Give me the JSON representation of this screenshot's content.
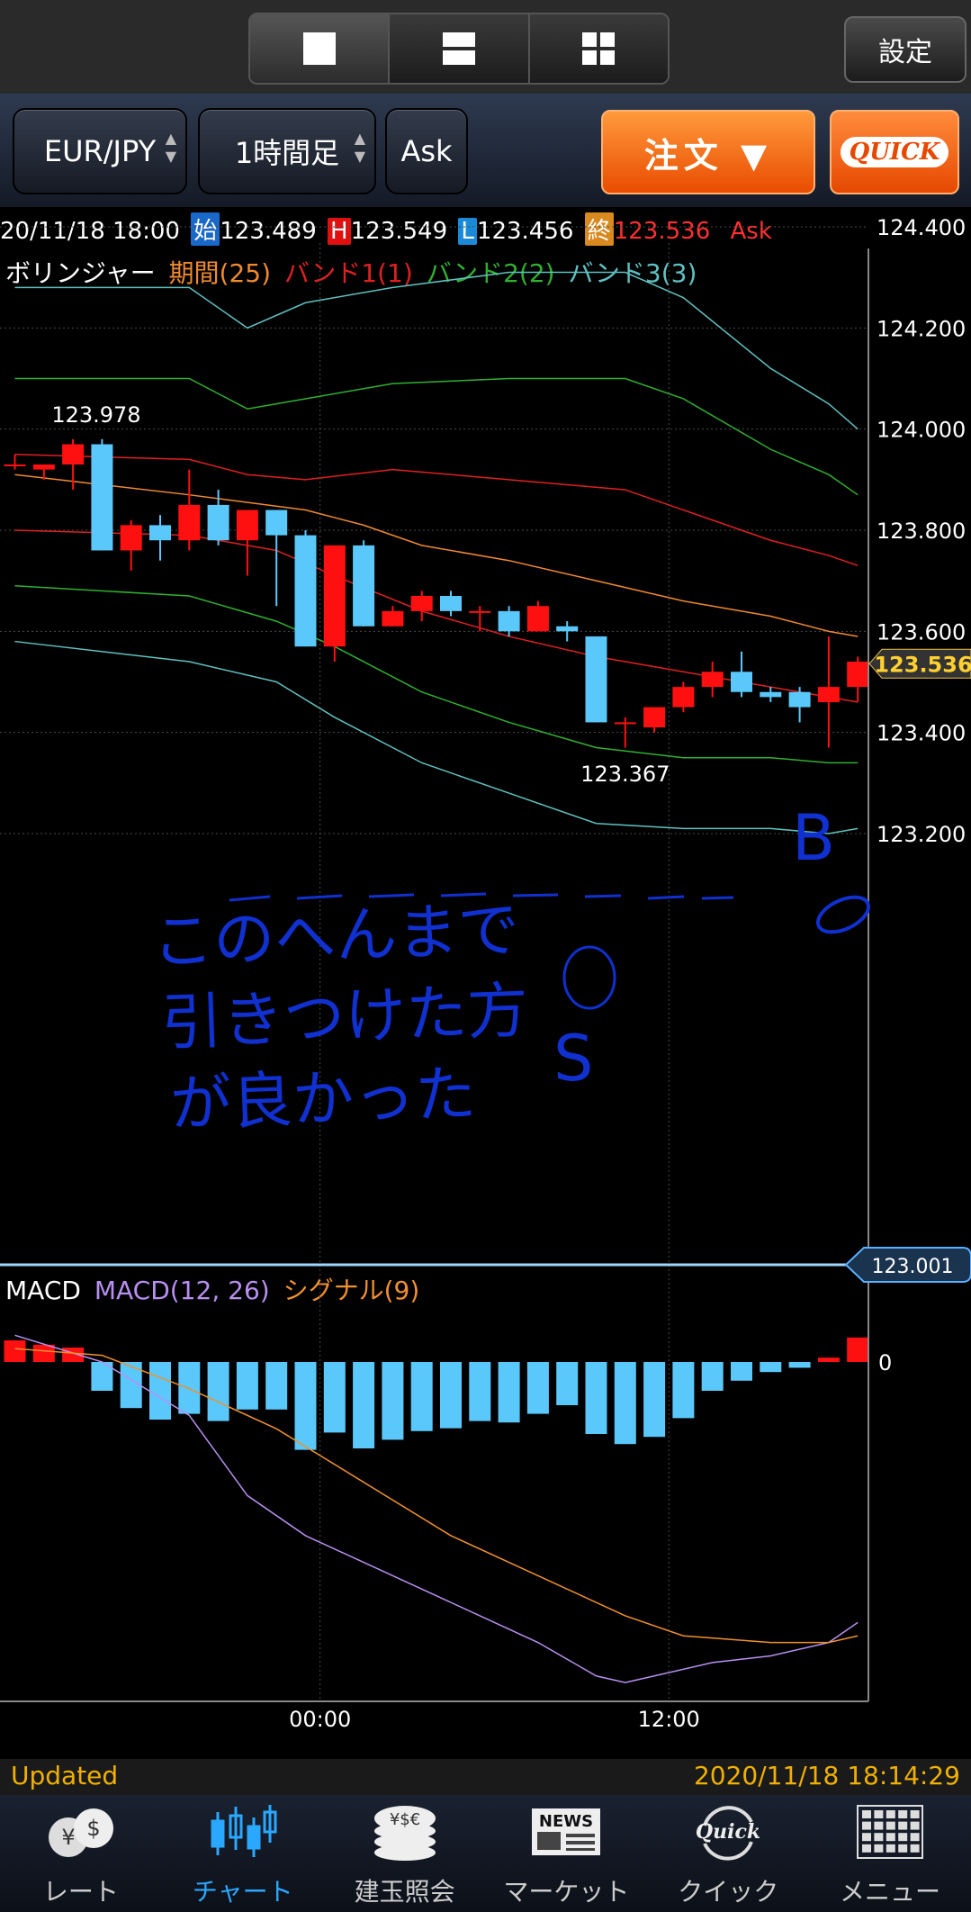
{
  "layout_buttons": [
    {
      "name": "single",
      "active": true
    },
    {
      "name": "double",
      "active": false
    },
    {
      "name": "quad",
      "active": false
    }
  ],
  "settings_label": "設定",
  "toolbar": {
    "symbol": "EUR/JPY",
    "timeframe": "1時間足",
    "price_type": "Ask",
    "order_label": "注文 ▼",
    "quick_label": "QUICK"
  },
  "ohlc": {
    "datetime": "20/11/18 18:00",
    "open_tag": "始",
    "open": "123.489",
    "high_tag": "H",
    "high": "123.549",
    "low_tag": "L",
    "low": "123.456",
    "close_tag": "終",
    "close": "123.536",
    "price_type": "Ask"
  },
  "bollinger_legend": {
    "name": "ボリンジャー",
    "period": "期間(25)",
    "band1": "バンド1(1)",
    "band2": "バンド2(2)",
    "band3": "バンド3(3)"
  },
  "macd_legend": {
    "name": "MACD",
    "macd": "MACD(12, 26)",
    "signal": "シグナル(9)"
  },
  "colors": {
    "up": "#ff1010",
    "down": "#5ac8fa",
    "mid": "#f08a30",
    "band1": "#e02020",
    "band2": "#30b030",
    "band3": "#60c0c0",
    "macd_line": "#b890f0",
    "signal_line": "#f09030",
    "ink": "#1030d0",
    "accent": "#f0b000"
  },
  "chart_data": [
    {
      "type": "candlestick",
      "title": "",
      "y_ticks": [
        "124.400",
        "124.200",
        "124.000",
        "123.800",
        "123.600",
        "123.400",
        "123.200"
      ],
      "ylim": [
        123.001,
        124.45
      ],
      "x_ticks": [
        "00:00",
        "12:00"
      ],
      "x_tick_index": [
        10.5,
        22.5
      ],
      "current_price": "123.536",
      "bottom_label": "123.001",
      "annotations": {
        "high_label": "123.978",
        "low_label": "123.367"
      },
      "candles": [
        {
          "o": 123.93,
          "h": 123.95,
          "l": 123.92,
          "c": 123.93
        },
        {
          "o": 123.92,
          "h": 123.93,
          "l": 123.9,
          "c": 123.93
        },
        {
          "o": 123.93,
          "h": 123.98,
          "l": 123.88,
          "c": 123.97
        },
        {
          "o": 123.97,
          "h": 123.98,
          "l": 123.76,
          "c": 123.76
        },
        {
          "o": 123.76,
          "h": 123.82,
          "l": 123.72,
          "c": 123.81
        },
        {
          "o": 123.81,
          "h": 123.83,
          "l": 123.74,
          "c": 123.78
        },
        {
          "o": 123.78,
          "h": 123.92,
          "l": 123.76,
          "c": 123.85
        },
        {
          "o": 123.85,
          "h": 123.88,
          "l": 123.77,
          "c": 123.78
        },
        {
          "o": 123.78,
          "h": 123.84,
          "l": 123.71,
          "c": 123.84
        },
        {
          "o": 123.84,
          "h": 123.84,
          "l": 123.65,
          "c": 123.79
        },
        {
          "o": 123.79,
          "h": 123.8,
          "l": 123.57,
          "c": 123.57
        },
        {
          "o": 123.57,
          "h": 123.77,
          "l": 123.54,
          "c": 123.77
        },
        {
          "o": 123.77,
          "h": 123.78,
          "l": 123.61,
          "c": 123.61
        },
        {
          "o": 123.61,
          "h": 123.65,
          "l": 123.61,
          "c": 123.64
        },
        {
          "o": 123.64,
          "h": 123.68,
          "l": 123.62,
          "c": 123.67
        },
        {
          "o": 123.67,
          "h": 123.68,
          "l": 123.63,
          "c": 123.64
        },
        {
          "o": 123.64,
          "h": 123.65,
          "l": 123.6,
          "c": 123.64
        },
        {
          "o": 123.64,
          "h": 123.65,
          "l": 123.59,
          "c": 123.6
        },
        {
          "o": 123.6,
          "h": 123.66,
          "l": 123.6,
          "c": 123.65
        },
        {
          "o": 123.61,
          "h": 123.62,
          "l": 123.58,
          "c": 123.6
        },
        {
          "o": 123.59,
          "h": 123.59,
          "l": 123.42,
          "c": 123.42
        },
        {
          "o": 123.42,
          "h": 123.43,
          "l": 123.37,
          "c": 123.42
        },
        {
          "o": 123.41,
          "h": 123.45,
          "l": 123.4,
          "c": 123.45
        },
        {
          "o": 123.45,
          "h": 123.5,
          "l": 123.44,
          "c": 123.49
        },
        {
          "o": 123.49,
          "h": 123.54,
          "l": 123.47,
          "c": 123.52
        },
        {
          "o": 123.52,
          "h": 123.56,
          "l": 123.47,
          "c": 123.48
        },
        {
          "o": 123.48,
          "h": 123.49,
          "l": 123.46,
          "c": 123.47
        },
        {
          "o": 123.48,
          "h": 123.49,
          "l": 123.42,
          "c": 123.45
        },
        {
          "o": 123.46,
          "h": 123.59,
          "l": 123.37,
          "c": 123.49
        },
        {
          "o": 123.49,
          "h": 123.55,
          "l": 123.46,
          "c": 123.54
        }
      ],
      "bollinger": {
        "band3_upper": [
          [
            0,
            124.28
          ],
          [
            6,
            124.28
          ],
          [
            8,
            124.2
          ],
          [
            10,
            124.25
          ],
          [
            13,
            124.28
          ],
          [
            17,
            124.31
          ],
          [
            21,
            124.31
          ],
          [
            23,
            124.26
          ],
          [
            26,
            124.12
          ],
          [
            28,
            124.05
          ],
          [
            29,
            124.0
          ]
        ],
        "band2_upper": [
          [
            0,
            124.1
          ],
          [
            6,
            124.1
          ],
          [
            8,
            124.04
          ],
          [
            10,
            124.06
          ],
          [
            13,
            124.09
          ],
          [
            17,
            124.1
          ],
          [
            21,
            124.1
          ],
          [
            23,
            124.06
          ],
          [
            26,
            123.96
          ],
          [
            28,
            123.91
          ],
          [
            29,
            123.87
          ]
        ],
        "band1_upper": [
          [
            0,
            123.95
          ],
          [
            6,
            123.94
          ],
          [
            8,
            123.91
          ],
          [
            10,
            123.9
          ],
          [
            13,
            123.92
          ],
          [
            17,
            123.9
          ],
          [
            21,
            123.88
          ],
          [
            23,
            123.84
          ],
          [
            26,
            123.78
          ],
          [
            28,
            123.75
          ],
          [
            29,
            123.73
          ]
        ],
        "middle": [
          [
            0,
            123.91
          ],
          [
            6,
            123.87
          ],
          [
            10,
            123.84
          ],
          [
            12,
            123.81
          ],
          [
            14,
            123.77
          ],
          [
            17,
            123.74
          ],
          [
            20,
            123.7
          ],
          [
            23,
            123.66
          ],
          [
            26,
            123.63
          ],
          [
            28,
            123.6
          ],
          [
            29,
            123.59
          ]
        ],
        "band1_lower": [
          [
            0,
            123.8
          ],
          [
            6,
            123.79
          ],
          [
            9,
            123.76
          ],
          [
            11,
            123.71
          ],
          [
            14,
            123.64
          ],
          [
            17,
            123.59
          ],
          [
            20,
            123.55
          ],
          [
            23,
            123.52
          ],
          [
            26,
            123.49
          ],
          [
            28,
            123.47
          ],
          [
            29,
            123.46
          ]
        ],
        "band2_lower": [
          [
            0,
            123.69
          ],
          [
            6,
            123.67
          ],
          [
            9,
            123.62
          ],
          [
            11,
            123.57
          ],
          [
            14,
            123.48
          ],
          [
            17,
            123.42
          ],
          [
            20,
            123.37
          ],
          [
            23,
            123.35
          ],
          [
            26,
            123.35
          ],
          [
            28,
            123.34
          ],
          [
            29,
            123.34
          ]
        ],
        "band3_lower": [
          [
            0,
            123.58
          ],
          [
            6,
            123.54
          ],
          [
            9,
            123.5
          ],
          [
            11,
            123.43
          ],
          [
            14,
            123.34
          ],
          [
            17,
            123.28
          ],
          [
            20,
            123.22
          ],
          [
            23,
            123.21
          ],
          [
            26,
            123.21
          ],
          [
            28,
            123.2
          ],
          [
            29,
            123.21
          ]
        ]
      }
    },
    {
      "type": "macd",
      "zero_label": "0",
      "histogram": [
        0.015,
        0.012,
        0.01,
        -0.02,
        -0.032,
        -0.04,
        -0.036,
        -0.041,
        -0.033,
        -0.033,
        -0.061,
        -0.049,
        -0.06,
        -0.054,
        -0.048,
        -0.046,
        -0.041,
        -0.042,
        -0.036,
        -0.03,
        -0.05,
        -0.057,
        -0.052,
        -0.039,
        -0.02,
        -0.013,
        -0.007,
        -0.004,
        0.003,
        0.017
      ],
      "macd_line": [
        [
          0,
          0.02
        ],
        [
          3,
          0.0
        ],
        [
          6,
          -0.04
        ],
        [
          8,
          -0.1
        ],
        [
          10,
          -0.13
        ],
        [
          12,
          -0.15
        ],
        [
          15,
          -0.18
        ],
        [
          18,
          -0.21
        ],
        [
          20,
          -0.235
        ],
        [
          21,
          -0.24
        ],
        [
          22,
          -0.235
        ],
        [
          24,
          -0.225
        ],
        [
          26,
          -0.22
        ],
        [
          28,
          -0.21
        ],
        [
          29,
          -0.195
        ]
      ],
      "signal_line": [
        [
          0,
          0.01
        ],
        [
          3,
          0.005
        ],
        [
          6,
          -0.02
        ],
        [
          9,
          -0.05
        ],
        [
          12,
          -0.09
        ],
        [
          15,
          -0.13
        ],
        [
          18,
          -0.16
        ],
        [
          21,
          -0.19
        ],
        [
          23,
          -0.205
        ],
        [
          26,
          -0.21
        ],
        [
          28,
          -0.21
        ],
        [
          29,
          -0.205
        ]
      ],
      "ylim": [
        -0.25,
        0.03
      ]
    }
  ],
  "handwriting": {
    "line1": "このへんまで",
    "line2": "引きつけた方",
    "line3": "が良かった",
    "mark_s": "S",
    "mark_b": "B"
  },
  "status": {
    "updated": "Updated",
    "timestamp": "2020/11/18 18:14:29"
  },
  "nav": [
    {
      "label": "レート",
      "icon": "rate-coins-icon"
    },
    {
      "label": "チャート",
      "icon": "chart-candles-icon",
      "active": true
    },
    {
      "label": "建玉照会",
      "icon": "positions-coins-icon"
    },
    {
      "label": "マーケット",
      "icon": "news-icon"
    },
    {
      "label": "クイック",
      "icon": "quick-icon"
    },
    {
      "label": "メニュー",
      "icon": "menu-grid-icon"
    }
  ]
}
